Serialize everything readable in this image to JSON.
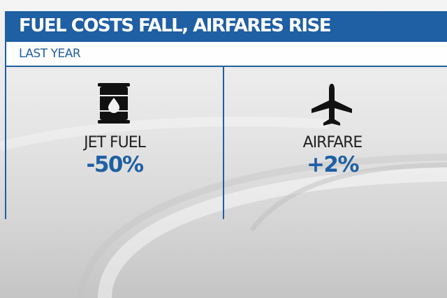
{
  "header": {
    "title": "FUEL COSTS FALL, AIRFARES RISE",
    "subtitle": "LAST YEAR"
  },
  "panels": [
    {
      "icon": "oil-barrel-icon",
      "label": "JET FUEL",
      "value": "-50%"
    },
    {
      "icon": "airplane-icon",
      "label": "AIRFARE",
      "value": "+2%"
    }
  ],
  "colors": {
    "accent": "#1f5fa3",
    "text": "#222222",
    "background": "#ececec"
  }
}
